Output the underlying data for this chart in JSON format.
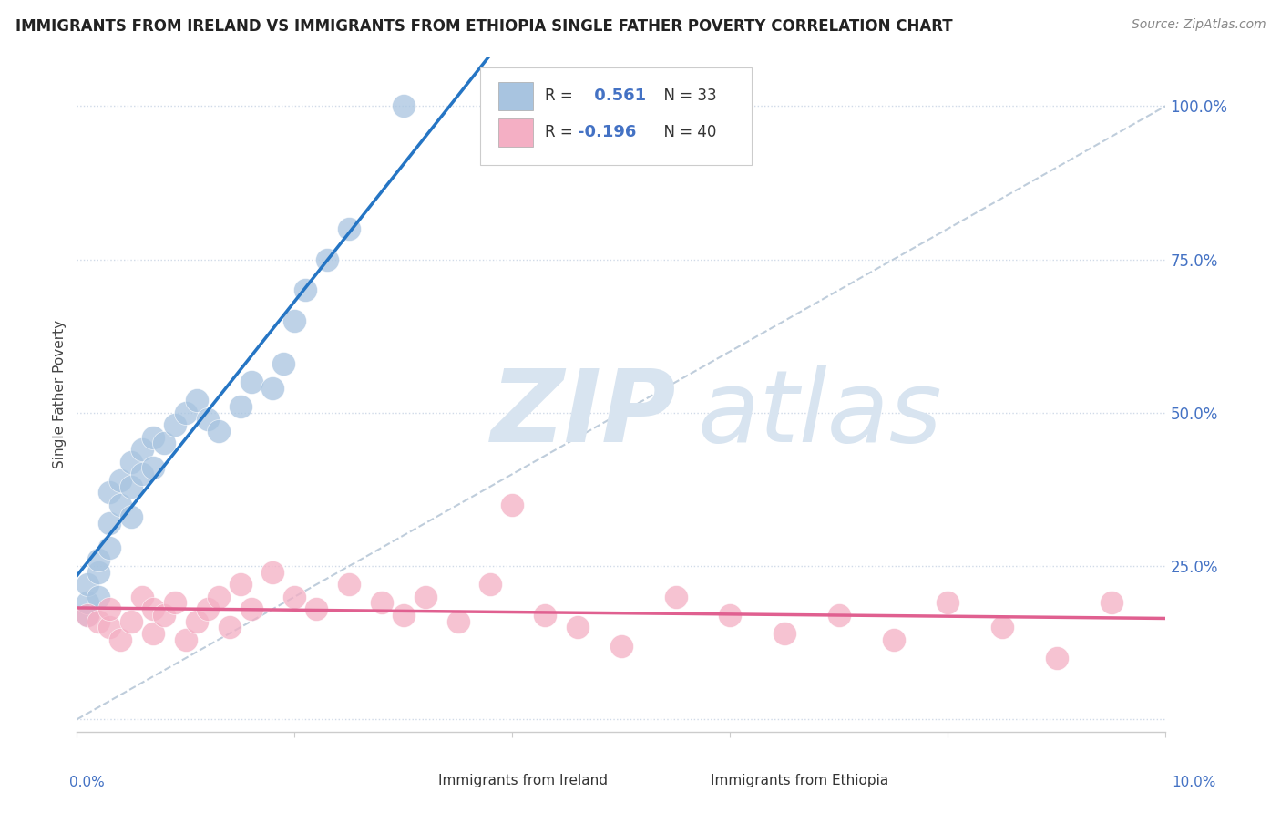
{
  "title": "IMMIGRANTS FROM IRELAND VS IMMIGRANTS FROM ETHIOPIA SINGLE FATHER POVERTY CORRELATION CHART",
  "source": "Source: ZipAtlas.com",
  "ylabel": "Single Father Poverty",
  "ireland_R": 0.561,
  "ireland_N": 33,
  "ethiopia_R": -0.196,
  "ethiopia_N": 40,
  "ireland_color": "#a8c4e0",
  "ireland_line_color": "#2575c4",
  "ethiopia_color": "#f4afc4",
  "ethiopia_line_color": "#e06090",
  "diag_color": "#b8c8d8",
  "watermark_color": "#d8e4f0",
  "ireland_points_x": [
    0.001,
    0.001,
    0.001,
    0.002,
    0.002,
    0.002,
    0.003,
    0.003,
    0.003,
    0.004,
    0.004,
    0.005,
    0.005,
    0.005,
    0.006,
    0.006,
    0.007,
    0.007,
    0.008,
    0.009,
    0.01,
    0.011,
    0.012,
    0.013,
    0.015,
    0.016,
    0.018,
    0.019,
    0.02,
    0.021,
    0.023,
    0.025,
    0.03
  ],
  "ireland_points_y": [
    0.17,
    0.19,
    0.22,
    0.2,
    0.24,
    0.26,
    0.28,
    0.32,
    0.37,
    0.35,
    0.39,
    0.33,
    0.38,
    0.42,
    0.4,
    0.44,
    0.41,
    0.46,
    0.45,
    0.48,
    0.5,
    0.52,
    0.49,
    0.47,
    0.51,
    0.55,
    0.54,
    0.58,
    0.65,
    0.7,
    0.75,
    0.8,
    1.0
  ],
  "ethiopia_points_x": [
    0.001,
    0.002,
    0.003,
    0.003,
    0.004,
    0.005,
    0.006,
    0.007,
    0.007,
    0.008,
    0.009,
    0.01,
    0.011,
    0.012,
    0.013,
    0.014,
    0.015,
    0.016,
    0.018,
    0.02,
    0.022,
    0.025,
    0.028,
    0.03,
    0.032,
    0.035,
    0.038,
    0.04,
    0.043,
    0.046,
    0.05,
    0.055,
    0.06,
    0.065,
    0.07,
    0.075,
    0.08,
    0.085,
    0.09,
    0.095
  ],
  "ethiopia_points_y": [
    0.17,
    0.16,
    0.15,
    0.18,
    0.13,
    0.16,
    0.2,
    0.14,
    0.18,
    0.17,
    0.19,
    0.13,
    0.16,
    0.18,
    0.2,
    0.15,
    0.22,
    0.18,
    0.24,
    0.2,
    0.18,
    0.22,
    0.19,
    0.17,
    0.2,
    0.16,
    0.22,
    0.35,
    0.17,
    0.15,
    0.12,
    0.2,
    0.17,
    0.14,
    0.17,
    0.13,
    0.19,
    0.15,
    0.1,
    0.19
  ],
  "xlim": [
    0.0,
    0.1
  ],
  "ylim": [
    -0.02,
    1.08
  ],
  "ytick_positions": [
    0.0,
    0.25,
    0.5,
    0.75,
    1.0
  ],
  "ytick_labels": [
    "",
    "25.0%",
    "50.0%",
    "75.0%",
    "100.0%"
  ],
  "xtick_positions": [
    0.0,
    0.02,
    0.04,
    0.06,
    0.08,
    0.1
  ],
  "bg_color": "#ffffff",
  "grid_color": "#d0dae8",
  "spine_color": "#cccccc"
}
